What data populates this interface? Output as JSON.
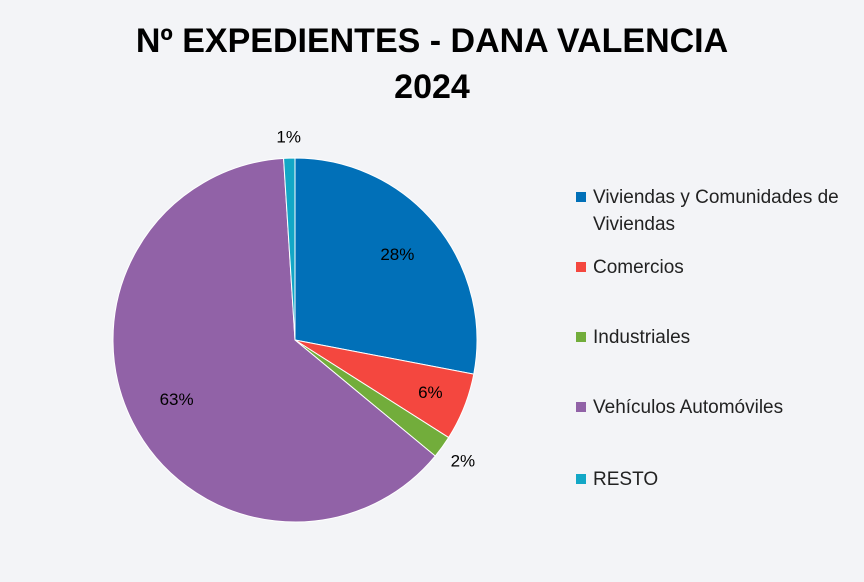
{
  "chart_data": {
    "type": "pie",
    "title_line1": "Nº EXPEDIENTES - DANA VALENCIA",
    "title_line2": "2024",
    "slices": [
      {
        "label": "Viviendas y Comunidades de Viviendas",
        "value": 28,
        "display": "28%",
        "color": "#0170b8"
      },
      {
        "label": "Comercios",
        "value": 6,
        "display": "6%",
        "color": "#f4473f"
      },
      {
        "label": "Industriales",
        "value": 2,
        "display": "2%",
        "color": "#72ad3b"
      },
      {
        "label": "Vehículos Automóviles",
        "value": 63,
        "display": "63%",
        "color": "#9162a7"
      },
      {
        "label": "RESTO",
        "value": 1,
        "display": "1%",
        "color": "#12a7c6"
      }
    ],
    "legend_position": "right"
  }
}
